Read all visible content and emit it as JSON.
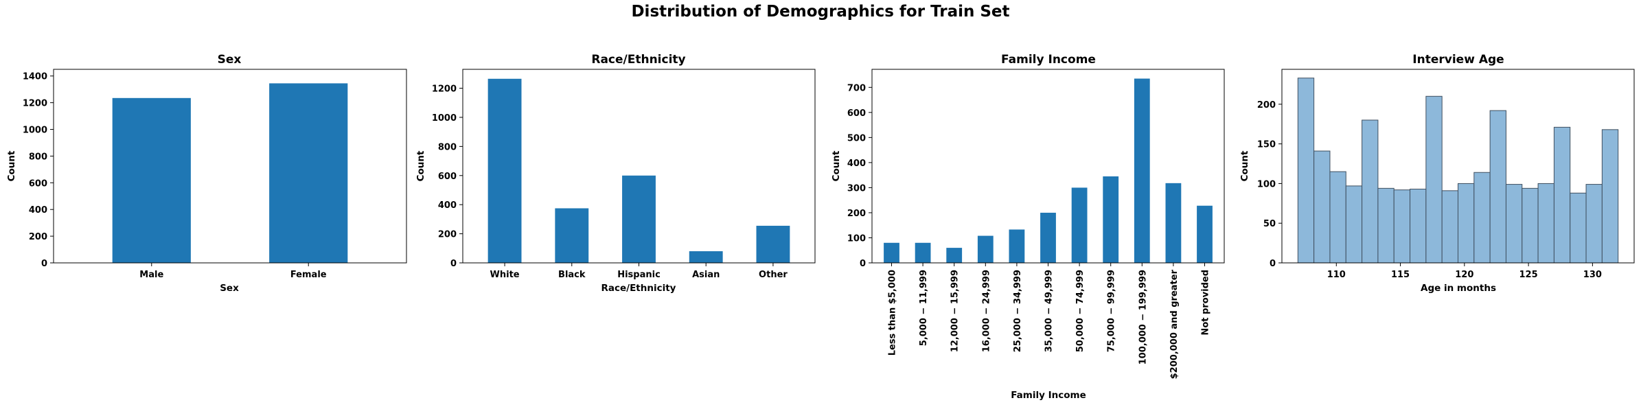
{
  "figure_title": "Distribution of Demographics for Train Set",
  "colors": {
    "bar": "#1f77b4",
    "hist_fill": "#8db8da",
    "hist_edge": "#3f4f5f"
  },
  "chart_data": [
    {
      "type": "bar",
      "title": "Sex",
      "xlabel": "Sex",
      "ylabel": "Count",
      "categories": [
        "Male",
        "Female"
      ],
      "values": [
        1235,
        1345
      ],
      "ylim": [
        0,
        1450
      ],
      "yticks": [
        0,
        200,
        400,
        600,
        800,
        1000,
        1200,
        1400
      ],
      "xtick_rotation": 0,
      "grid": false,
      "legend": "none"
    },
    {
      "type": "bar",
      "title": "Race/Ethnicity",
      "xlabel": "Race/Ethnicity",
      "ylabel": "Count",
      "categories": [
        "White",
        "Black",
        "Hispanic",
        "Asian",
        "Other"
      ],
      "values": [
        1265,
        375,
        600,
        80,
        255
      ],
      "ylim": [
        0,
        1330
      ],
      "yticks": [
        0,
        200,
        400,
        600,
        800,
        1000,
        1200
      ],
      "xtick_rotation": 0,
      "grid": false,
      "legend": "none"
    },
    {
      "type": "bar",
      "title": "Family Income",
      "xlabel": "Family Income",
      "ylabel": "Count",
      "categories": [
        "Less than $5,000",
        "5,000 − 11,999",
        "12,000 − 15,999",
        "16,000 − 24,999",
        "25,000 − 34,999",
        "35,000 − 49,999",
        "50,000 − 74,999",
        "75,000 − 99,999",
        "100,000 − 199,999",
        "$200,000 and greater",
        "Not provided"
      ],
      "values": [
        80,
        80,
        60,
        108,
        133,
        200,
        300,
        345,
        735,
        318,
        228
      ],
      "ylim": [
        0,
        772
      ],
      "yticks": [
        0,
        100,
        200,
        300,
        400,
        500,
        600,
        700
      ],
      "xtick_rotation": -90,
      "grid": false,
      "legend": "none"
    },
    {
      "type": "bar",
      "subtype": "histogram",
      "title": "Interview Age",
      "xlabel": "Age in months",
      "ylabel": "Count",
      "bin_edges": [
        107,
        108.25,
        109.5,
        110.75,
        112,
        113.25,
        114.5,
        115.75,
        117,
        118.25,
        119.5,
        120.75,
        122,
        123.25,
        124.5,
        125.75,
        127,
        128.25,
        129.5,
        130.75,
        132
      ],
      "values": [
        233,
        141,
        115,
        97,
        180,
        94,
        92,
        93,
        210,
        91,
        100,
        114,
        192,
        99,
        94,
        100,
        171,
        88,
        99,
        168
      ],
      "xlim": [
        105.75,
        133.25
      ],
      "ylim": [
        0,
        244
      ],
      "xticks": [
        110,
        115,
        120,
        125,
        130
      ],
      "yticks": [
        0,
        50,
        100,
        150,
        200
      ],
      "grid": false,
      "legend": "none"
    }
  ]
}
